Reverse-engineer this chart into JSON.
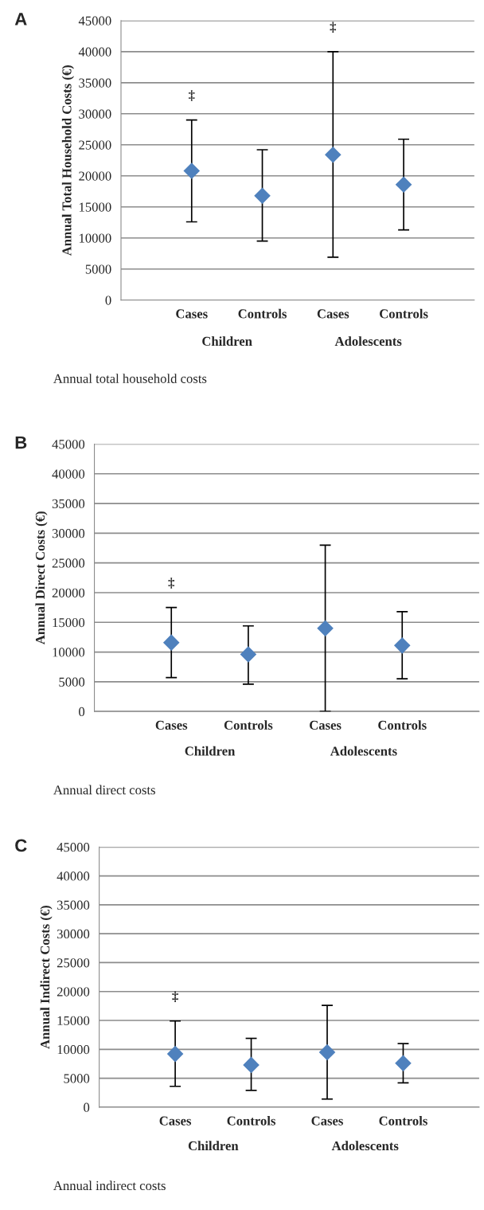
{
  "chart_data": [
    {
      "type": "scatter",
      "title": "A",
      "ylabel": "Annual Total Household Costs (€)",
      "categories": [
        "Cases",
        "Controls",
        "Cases",
        "Controls"
      ],
      "series": [
        {
          "color": "#4f81bd",
          "values": [
            20800,
            16800,
            23400,
            18600
          ],
          "errors": [
            [
              12600,
              29000
            ],
            [
              9500,
              24200
            ],
            [
              6900,
              40000
            ],
            [
              11300,
              25900
            ]
          ]
        }
      ],
      "ylim": [
        0,
        45000
      ],
      "yticks": [
        0,
        5000,
        10000,
        15000,
        20000,
        25000,
        30000,
        35000,
        40000,
        45000
      ],
      "grid": "y",
      "marker": "diamond",
      "annotations": [
        "‡",
        "‡",
        "Children",
        "Adolescents",
        "Annual total household costs"
      ]
    },
    {
      "type": "scatter",
      "title": "B",
      "ylabel": "Annual Direct Costs (€)",
      "categories": [
        "Cases",
        "Controls",
        "Cases",
        "Controls"
      ],
      "series": [
        {
          "color": "#4f81bd",
          "values": [
            11600,
            9600,
            14000,
            11100
          ],
          "errors": [
            [
              5700,
              17500
            ],
            [
              4600,
              14400
            ],
            [
              0,
              28000
            ],
            [
              5500,
              16800
            ]
          ]
        }
      ],
      "ylim": [
        0,
        45000
      ],
      "yticks": [
        0,
        5000,
        10000,
        15000,
        20000,
        25000,
        30000,
        35000,
        40000,
        45000
      ],
      "grid": "y",
      "marker": "diamond",
      "annotations": [
        "‡",
        "Children",
        "Adolescents",
        "Annual direct costs"
      ]
    },
    {
      "type": "scatter",
      "title": "C",
      "ylabel": "Annual Indirect Costs (€)",
      "categories": [
        "Cases",
        "Controls",
        "Cases",
        "Controls"
      ],
      "series": [
        {
          "color": "#4f81bd",
          "values": [
            9200,
            7300,
            9500,
            7600
          ],
          "errors": [
            [
              3600,
              14900
            ],
            [
              2900,
              11900
            ],
            [
              1400,
              17600
            ],
            [
              4200,
              11000
            ]
          ]
        }
      ],
      "ylim": [
        0,
        45000
      ],
      "yticks": [
        0,
        5000,
        10000,
        15000,
        20000,
        25000,
        30000,
        35000,
        40000,
        45000
      ],
      "grid": "y",
      "marker": "diamond",
      "annotations": [
        "‡",
        "Children",
        "Adolescents",
        "Annual indirect costs"
      ]
    }
  ]
}
